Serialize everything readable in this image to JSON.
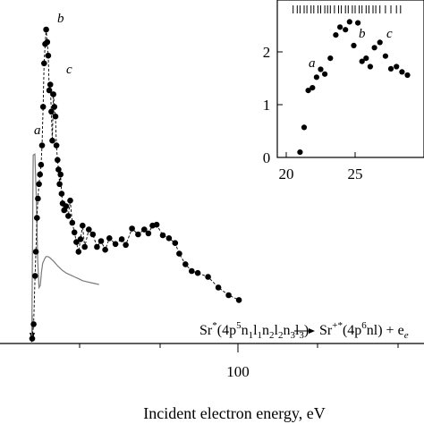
{
  "chart_data": [
    {
      "type": "scatter",
      "xlabel": "Incident electron energy, eV",
      "ylabel": "",
      "x_tick_labels": [
        "100"
      ],
      "xlim": [
        25,
        129
      ],
      "ylim": [
        0,
        3.6
      ],
      "annotation_labels": [
        "a",
        "b",
        "c"
      ],
      "equation": {
        "lhs": "Sr",
        "lhs_sup": "*",
        "lhs_config": "(4p",
        "lhs_config_sup": "5",
        "lhs_rest": "n",
        "terms": [
          "1",
          "1",
          "2",
          "2",
          "3",
          "3"
        ],
        "arrow": "⟶",
        "rhs": "Sr",
        "rhs_sup": "+*",
        "rhs_config": "(4p",
        "rhs_config_sup": "6",
        "rhs_rest": "nl) + e",
        "rhs_sub": "e"
      },
      "series": [
        {
          "style": "dashed line with filled circles",
          "x": [
            27.5,
            28.2,
            28.9,
            29.3,
            29.8,
            30.3,
            30.8,
            31.3,
            31.8,
            32.3,
            32.8,
            33.3,
            33.8,
            34.3,
            34.8,
            35.3,
            35.8,
            36.3,
            36.8,
            37.3,
            37.8,
            38.3,
            38.8,
            39.3,
            39.8,
            40.3,
            40.8,
            41.3,
            41.8,
            42.3,
            43.0,
            44.0,
            45.0,
            46.0,
            47.0,
            48.0,
            49.0,
            50.0,
            51.0,
            52.0,
            53.0,
            55.0,
            57.0,
            59.0,
            61.0,
            63.0,
            65.0,
            68.0,
            71.0,
            73.0,
            76.0,
            79.0,
            82.0,
            84.0,
            86.0,
            88.0,
            91.0,
            94.0,
            97.0,
            99.0,
            102.0,
            105.0,
            108.0,
            113.0,
            118.0,
            123.0,
            128.0
          ],
          "y": [
            0.05,
            0.2,
            0.7,
            0.95,
            1.3,
            1.5,
            1.65,
            1.75,
            1.85,
            2.05,
            2.45,
            2.9,
            3.1,
            3.25,
            3.12,
            2.98,
            2.62,
            2.68,
            2.4,
            2.1,
            2.58,
            2.45,
            2.35,
            2.05,
            1.9,
            1.8,
            1.65,
            1.75,
            1.55,
            1.45,
            1.38,
            1.42,
            1.32,
            1.48,
            1.25,
            1.15,
            1.05,
            0.95,
            1.08,
            1.22,
            1.0,
            1.18,
            1.13,
            1.0,
            1.06,
            0.97,
            1.09,
            1.03,
            1.08,
            1.02,
            1.19,
            1.13,
            1.18,
            1.14,
            1.22,
            1.23,
            1.12,
            1.09,
            1.04,
            0.93,
            0.82,
            0.75,
            0.73,
            0.69,
            0.58,
            0.5,
            0.45
          ]
        },
        {
          "style": "solid gray line",
          "x": [
            27.3,
            28.0,
            28.8,
            29.5,
            30.2,
            30.8,
            31.4,
            32.0,
            32.6,
            33.4,
            34.2,
            35.0,
            36.0,
            38.0,
            40.0,
            42.0,
            44.0,
            46.0,
            48.0,
            50.0,
            52.0,
            54.0,
            56.0,
            58.0,
            60.0
          ],
          "y": [
            0.0,
            1.95,
            1.96,
            1.5,
            0.85,
            0.58,
            0.6,
            0.74,
            0.83,
            0.87,
            0.9,
            0.9,
            0.89,
            0.85,
            0.8,
            0.76,
            0.73,
            0.71,
            0.69,
            0.67,
            0.65,
            0.64,
            0.63,
            0.62,
            0.61
          ]
        }
      ]
    },
    {
      "type": "scatter",
      "inset": true,
      "xlabel": "",
      "ylabel": "",
      "x_tick_labels": [
        "20",
        "25"
      ],
      "y_tick_labels": [
        "0",
        "1",
        "2"
      ],
      "xlim": [
        20,
        29
      ],
      "ylim": [
        0,
        2.85
      ],
      "annotation_labels": [
        "a",
        "b",
        "c"
      ],
      "points": {
        "x": [
          21.0,
          21.3,
          21.6,
          21.9,
          22.2,
          22.5,
          22.8,
          23.2,
          23.6,
          23.9,
          24.3,
          24.6,
          24.9,
          25.2,
          25.5,
          25.8,
          26.1,
          26.4,
          26.8,
          27.2,
          27.6,
          28.0,
          28.4,
          28.8
        ],
        "y": [
          0.1,
          0.57,
          1.27,
          1.32,
          1.52,
          1.67,
          1.58,
          1.88,
          2.32,
          2.47,
          2.42,
          2.57,
          2.12,
          2.55,
          1.82,
          1.88,
          1.72,
          2.08,
          2.18,
          1.92,
          1.68,
          1.72,
          1.62,
          1.56
        ]
      },
      "bars": [
        20.5,
        20.8,
        21.0,
        21.3,
        21.5,
        21.8,
        22.0,
        22.3,
        22.5,
        22.8,
        23.0,
        23.2,
        23.5,
        23.8,
        24.0,
        24.3,
        24.5,
        24.8,
        25.0,
        25.3,
        25.5,
        25.8,
        26.0,
        26.3,
        26.5,
        26.8,
        27.2,
        27.6,
        28.0,
        28.3
      ]
    }
  ]
}
